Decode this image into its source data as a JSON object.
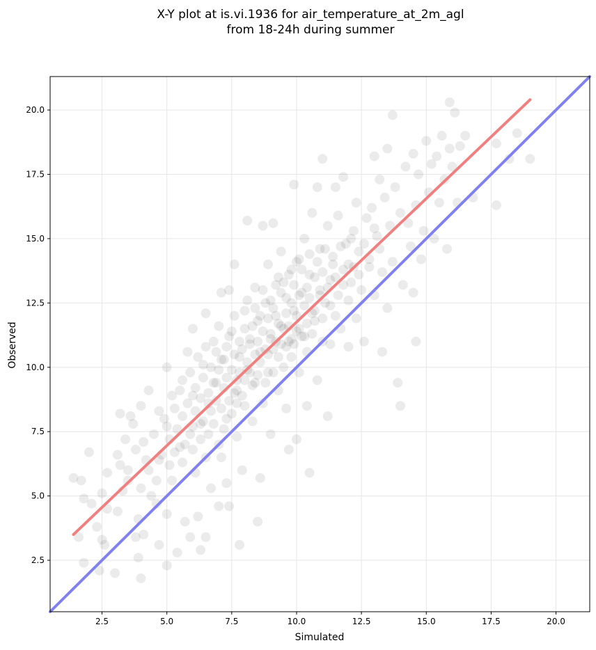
{
  "chart_data": {
    "type": "scatter",
    "title": [
      "X-Y plot at is.vi.1936 for air_temperature_at_2m_agl",
      "from 18-24h during summer"
    ],
    "xlabel": "Simulated",
    "ylabel": "Observed",
    "xlim": [
      0.5,
      21.3
    ],
    "ylim": [
      0.5,
      21.3
    ],
    "xticks": [
      2.5,
      5.0,
      7.5,
      10.0,
      12.5,
      15.0,
      17.5,
      20.0
    ],
    "yticks": [
      2.5,
      5.0,
      7.5,
      10.0,
      12.5,
      15.0,
      17.5,
      20.0
    ],
    "xtick_labels": [
      "2.5",
      "5.0",
      "7.5",
      "10.0",
      "12.5",
      "15.0",
      "17.5",
      "20.0"
    ],
    "ytick_labels": [
      "2.5",
      "5.0",
      "7.5",
      "10.0",
      "12.5",
      "15.0",
      "17.5",
      "20.0"
    ],
    "grid": true,
    "marker_color": "#000000",
    "marker_alpha": 0.08,
    "regression_line": {
      "color": "#f08080",
      "x": [
        1.4,
        19.0
      ],
      "y": [
        3.5,
        20.4
      ]
    },
    "identity_line": {
      "color": "#8080f0",
      "x": [
        0.5,
        21.3
      ],
      "y": [
        0.5,
        21.3
      ]
    },
    "points": [
      [
        1.4,
        5.7
      ],
      [
        1.6,
        3.4
      ],
      [
        1.7,
        5.6
      ],
      [
        1.8,
        2.4
      ],
      [
        1.8,
        4.9
      ],
      [
        2.0,
        6.7
      ],
      [
        2.1,
        4.7
      ],
      [
        2.3,
        3.8
      ],
      [
        2.4,
        2.1
      ],
      [
        2.5,
        3.3
      ],
      [
        2.5,
        5.1
      ],
      [
        2.6,
        3.1
      ],
      [
        2.7,
        4.5
      ],
      [
        2.7,
        5.9
      ],
      [
        3.0,
        2.0
      ],
      [
        3.1,
        4.4
      ],
      [
        3.2,
        6.2
      ],
      [
        3.2,
        8.2
      ],
      [
        3.3,
        5.2
      ],
      [
        3.4,
        7.2
      ],
      [
        3.5,
        5.6
      ],
      [
        3.6,
        8.1
      ],
      [
        3.7,
        7.8
      ],
      [
        3.8,
        3.4
      ],
      [
        3.9,
        2.6
      ],
      [
        3.9,
        4.1
      ],
      [
        4.0,
        1.8
      ],
      [
        4.0,
        5.3
      ],
      [
        4.0,
        8.5
      ],
      [
        4.1,
        3.5
      ],
      [
        4.2,
        6.4
      ],
      [
        4.3,
        9.1
      ],
      [
        4.4,
        5.0
      ],
      [
        4.6,
        4.7
      ],
      [
        4.7,
        3.1
      ],
      [
        4.7,
        8.3
      ],
      [
        4.8,
        6.6
      ],
      [
        5.0,
        2.3
      ],
      [
        5.0,
        4.3
      ],
      [
        5.0,
        7.7
      ],
      [
        5.0,
        10.0
      ],
      [
        5.2,
        5.6
      ],
      [
        5.3,
        8.4
      ],
      [
        5.4,
        2.8
      ],
      [
        5.5,
        6.9
      ],
      [
        5.6,
        9.5
      ],
      [
        5.7,
        4.0
      ],
      [
        5.8,
        10.6
      ],
      [
        5.9,
        3.4
      ],
      [
        5.9,
        7.4
      ],
      [
        6.0,
        8.9
      ],
      [
        6.0,
        11.5
      ],
      [
        6.1,
        5.9
      ],
      [
        6.2,
        4.2
      ],
      [
        6.3,
        2.9
      ],
      [
        6.3,
        7.8
      ],
      [
        6.4,
        10.1
      ],
      [
        6.5,
        3.4
      ],
      [
        6.5,
        6.5
      ],
      [
        6.5,
        12.1
      ],
      [
        6.6,
        8.6
      ],
      [
        6.7,
        5.3
      ],
      [
        6.8,
        11.0
      ],
      [
        6.9,
        9.4
      ],
      [
        7.0,
        4.6
      ],
      [
        7.0,
        7.0
      ],
      [
        7.1,
        6.5
      ],
      [
        7.1,
        12.9
      ],
      [
        7.2,
        10.3
      ],
      [
        7.3,
        8.0
      ],
      [
        7.3,
        5.5
      ],
      [
        7.4,
        13.0
      ],
      [
        7.4,
        4.6
      ],
      [
        7.5,
        11.4
      ],
      [
        7.6,
        9.0
      ],
      [
        7.6,
        14.0
      ],
      [
        7.7,
        7.3
      ],
      [
        7.7,
        9.1
      ],
      [
        7.8,
        3.1
      ],
      [
        7.8,
        10.4
      ],
      [
        7.9,
        6.0
      ],
      [
        8.0,
        12.2
      ],
      [
        8.0,
        8.5
      ],
      [
        8.1,
        15.7
      ],
      [
        8.1,
        9.9
      ],
      [
        8.2,
        11.1
      ],
      [
        8.3,
        7.9
      ],
      [
        8.4,
        13.1
      ],
      [
        8.4,
        9.4
      ],
      [
        8.5,
        4.0
      ],
      [
        8.5,
        11.8
      ],
      [
        8.6,
        10.6
      ],
      [
        8.6,
        5.7
      ],
      [
        8.7,
        15.5
      ],
      [
        8.7,
        8.6
      ],
      [
        8.8,
        12.5
      ],
      [
        8.9,
        9.8
      ],
      [
        8.9,
        14.0
      ],
      [
        9.0,
        11.3
      ],
      [
        9.0,
        7.4
      ],
      [
        9.1,
        10.7
      ],
      [
        9.1,
        15.6
      ],
      [
        9.2,
        12.0
      ],
      [
        9.3,
        9.1
      ],
      [
        9.3,
        13.5
      ],
      [
        9.4,
        11.6
      ],
      [
        9.4,
        14.5
      ],
      [
        9.5,
        10.0
      ],
      [
        9.6,
        8.4
      ],
      [
        9.6,
        12.7
      ],
      [
        9.7,
        11.0
      ],
      [
        9.7,
        6.8
      ],
      [
        9.8,
        13.8
      ],
      [
        9.8,
        10.4
      ],
      [
        9.9,
        17.1
      ],
      [
        9.9,
        12.2
      ],
      [
        10.0,
        11.4
      ],
      [
        10.0,
        7.2
      ],
      [
        10.1,
        14.2
      ],
      [
        10.1,
        9.8
      ],
      [
        10.2,
        12.9
      ],
      [
        10.3,
        11.2
      ],
      [
        10.3,
        15.0
      ],
      [
        10.4,
        10.6
      ],
      [
        10.4,
        8.5
      ],
      [
        10.5,
        13.6
      ],
      [
        10.5,
        5.9
      ],
      [
        10.6,
        12.1
      ],
      [
        10.6,
        16.0
      ],
      [
        10.7,
        11.8
      ],
      [
        10.8,
        17.0
      ],
      [
        10.8,
        9.5
      ],
      [
        10.9,
        13.0
      ],
      [
        10.9,
        14.6
      ],
      [
        11.0,
        18.1
      ],
      [
        11.0,
        11.0
      ],
      [
        11.1,
        12.5
      ],
      [
        11.2,
        15.5
      ],
      [
        11.2,
        8.1
      ],
      [
        11.3,
        13.4
      ],
      [
        11.3,
        10.9
      ],
      [
        11.4,
        14.0
      ],
      [
        11.5,
        17.0
      ],
      [
        11.5,
        12.0
      ],
      [
        11.6,
        15.9
      ],
      [
        11.7,
        11.5
      ],
      [
        11.8,
        13.2
      ],
      [
        11.8,
        17.4
      ],
      [
        11.9,
        14.8
      ],
      [
        12.0,
        12.6
      ],
      [
        12.0,
        10.8
      ],
      [
        12.1,
        15.0
      ],
      [
        12.2,
        13.9
      ],
      [
        12.3,
        11.9
      ],
      [
        12.3,
        16.4
      ],
      [
        12.4,
        14.5
      ],
      [
        12.5,
        13.0
      ],
      [
        12.6,
        11.0
      ],
      [
        12.7,
        15.8
      ],
      [
        12.8,
        14.2
      ],
      [
        12.9,
        16.2
      ],
      [
        13.0,
        12.8
      ],
      [
        13.0,
        18.2
      ],
      [
        13.1,
        15.1
      ],
      [
        13.2,
        17.3
      ],
      [
        13.3,
        13.7
      ],
      [
        13.3,
        10.6
      ],
      [
        13.4,
        16.6
      ],
      [
        13.5,
        12.3
      ],
      [
        13.5,
        18.5
      ],
      [
        13.6,
        15.5
      ],
      [
        13.7,
        14.1
      ],
      [
        13.7,
        19.8
      ],
      [
        13.8,
        17.0
      ],
      [
        13.9,
        9.4
      ],
      [
        14.0,
        8.5
      ],
      [
        14.0,
        16.0
      ],
      [
        14.1,
        13.2
      ],
      [
        14.2,
        17.8
      ],
      [
        14.3,
        15.6
      ],
      [
        14.4,
        14.7
      ],
      [
        14.5,
        18.3
      ],
      [
        14.5,
        12.9
      ],
      [
        14.6,
        16.3
      ],
      [
        14.6,
        11.0
      ],
      [
        14.7,
        17.5
      ],
      [
        14.8,
        14.2
      ],
      [
        14.9,
        15.3
      ],
      [
        15.0,
        18.8
      ],
      [
        15.1,
        16.8
      ],
      [
        15.2,
        17.9
      ],
      [
        15.3,
        15.0
      ],
      [
        15.4,
        18.2
      ],
      [
        15.5,
        16.4
      ],
      [
        15.6,
        19.0
      ],
      [
        15.7,
        17.3
      ],
      [
        15.8,
        14.6
      ],
      [
        15.9,
        18.5
      ],
      [
        15.9,
        20.3
      ],
      [
        16.0,
        17.8
      ],
      [
        16.1,
        19.9
      ],
      [
        16.2,
        16.4
      ],
      [
        16.3,
        18.6
      ],
      [
        16.5,
        19.0
      ],
      [
        16.8,
        16.6
      ],
      [
        17.7,
        18.7
      ],
      [
        17.7,
        16.3
      ],
      [
        18.2,
        18.1
      ],
      [
        18.5,
        19.1
      ],
      [
        19.0,
        18.1
      ],
      [
        3.1,
        6.6
      ],
      [
        3.5,
        6.0
      ],
      [
        3.8,
        6.8
      ],
      [
        4.1,
        7.1
      ],
      [
        4.3,
        6.0
      ],
      [
        4.5,
        7.4
      ],
      [
        4.6,
        5.6
      ],
      [
        4.7,
        6.4
      ],
      [
        4.9,
        8.0
      ],
      [
        5.1,
        6.2
      ],
      [
        5.1,
        7.2
      ],
      [
        5.2,
        8.9
      ],
      [
        5.3,
        6.7
      ],
      [
        5.4,
        7.6
      ],
      [
        5.5,
        9.1
      ],
      [
        5.6,
        6.3
      ],
      [
        5.6,
        8.1
      ],
      [
        5.7,
        7.0
      ],
      [
        5.8,
        8.6
      ],
      [
        5.9,
        9.8
      ],
      [
        6.0,
        6.8
      ],
      [
        6.0,
        7.7
      ],
      [
        6.1,
        9.2
      ],
      [
        6.1,
        8.3
      ],
      [
        6.2,
        10.4
      ],
      [
        6.3,
        7.2
      ],
      [
        6.3,
        8.8
      ],
      [
        6.4,
        9.6
      ],
      [
        6.4,
        7.9
      ],
      [
        6.5,
        10.8
      ],
      [
        6.6,
        9.0
      ],
      [
        6.6,
        7.4
      ],
      [
        6.7,
        8.3
      ],
      [
        6.7,
        10.0
      ],
      [
        6.8,
        9.4
      ],
      [
        6.8,
        7.8
      ],
      [
        6.9,
        10.6
      ],
      [
        6.9,
        8.7
      ],
      [
        7.0,
        9.9
      ],
      [
        7.0,
        11.6
      ],
      [
        7.1,
        8.4
      ],
      [
        7.1,
        10.3
      ],
      [
        7.2,
        9.2
      ],
      [
        7.2,
        7.6
      ],
      [
        7.3,
        10.8
      ],
      [
        7.3,
        9.6
      ],
      [
        7.4,
        8.7
      ],
      [
        7.4,
        11.2
      ],
      [
        7.5,
        9.9
      ],
      [
        7.5,
        8.2
      ],
      [
        7.6,
        10.5
      ],
      [
        7.6,
        12.0
      ],
      [
        7.7,
        9.5
      ],
      [
        7.7,
        8.6
      ],
      [
        7.8,
        11.0
      ],
      [
        7.8,
        9.8
      ],
      [
        7.9,
        10.7
      ],
      [
        7.9,
        8.9
      ],
      [
        8.0,
        11.5
      ],
      [
        8.0,
        9.5
      ],
      [
        8.1,
        10.2
      ],
      [
        8.1,
        12.6
      ],
      [
        8.2,
        9.8
      ],
      [
        8.2,
        10.9
      ],
      [
        8.3,
        11.6
      ],
      [
        8.3,
        9.3
      ],
      [
        8.4,
        10.5
      ],
      [
        8.4,
        12.3
      ],
      [
        8.5,
        11.0
      ],
      [
        8.5,
        9.7
      ],
      [
        8.6,
        12.0
      ],
      [
        8.6,
        10.2
      ],
      [
        8.7,
        11.4
      ],
      [
        8.7,
        13.0
      ],
      [
        8.8,
        10.7
      ],
      [
        8.8,
        9.4
      ],
      [
        8.9,
        11.9
      ],
      [
        8.9,
        10.5
      ],
      [
        9.0,
        12.6
      ],
      [
        9.0,
        11.1
      ],
      [
        9.1,
        9.8
      ],
      [
        9.1,
        12.3
      ],
      [
        9.2,
        11.0
      ],
      [
        9.2,
        13.2
      ],
      [
        9.3,
        10.4
      ],
      [
        9.3,
        11.7
      ],
      [
        9.4,
        12.9
      ],
      [
        9.4,
        10.9
      ],
      [
        9.5,
        11.5
      ],
      [
        9.5,
        13.3
      ],
      [
        9.6,
        10.8
      ],
      [
        9.6,
        12.1
      ],
      [
        9.7,
        11.6
      ],
      [
        9.7,
        13.6
      ],
      [
        9.8,
        11.1
      ],
      [
        9.8,
        12.5
      ],
      [
        9.9,
        10.9
      ],
      [
        9.9,
        13.2
      ],
      [
        10.0,
        12.0
      ],
      [
        10.0,
        14.1
      ],
      [
        10.1,
        11.5
      ],
      [
        10.1,
        12.8
      ],
      [
        10.2,
        11.2
      ],
      [
        10.2,
        13.8
      ],
      [
        10.3,
        12.4
      ],
      [
        10.4,
        11.7
      ],
      [
        10.4,
        13.1
      ],
      [
        10.5,
        12.7
      ],
      [
        10.5,
        14.4
      ],
      [
        10.6,
        11.3
      ],
      [
        10.7,
        13.5
      ],
      [
        10.7,
        12.2
      ],
      [
        10.8,
        14.1
      ],
      [
        10.9,
        12.8
      ],
      [
        11.0,
        13.7
      ],
      [
        11.0,
        11.9
      ],
      [
        11.1,
        14.6
      ],
      [
        11.2,
        13.1
      ],
      [
        11.3,
        12.4
      ],
      [
        11.4,
        14.3
      ],
      [
        11.5,
        13.5
      ],
      [
        11.6,
        12.8
      ],
      [
        11.7,
        14.7
      ],
      [
        11.8,
        13.8
      ],
      [
        12.0,
        14.0
      ],
      [
        12.1,
        13.3
      ],
      [
        12.2,
        15.3
      ],
      [
        12.4,
        13.6
      ],
      [
        12.6,
        14.8
      ],
      [
        12.8,
        13.9
      ],
      [
        13.0,
        15.4
      ],
      [
        13.2,
        14.6
      ]
    ]
  }
}
